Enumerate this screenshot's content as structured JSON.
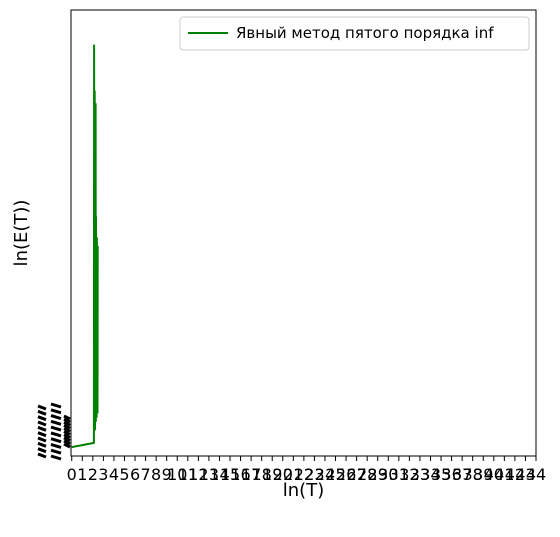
{
  "chart_data": {
    "type": "line",
    "xlabel": "ln(T)",
    "ylabel": "ln(E(T))",
    "xlim": [
      -0.07,
      44
    ],
    "ylim": [
      0,
      100
    ],
    "grid": false,
    "legend_position": "top-right",
    "x_ticks": [
      "0",
      "1",
      "2",
      "3",
      "4",
      "5",
      "6",
      "7",
      "8",
      "9",
      "10",
      "11",
      "12",
      "13",
      "14",
      "15",
      "16",
      "17",
      "18",
      "19",
      "20",
      "21",
      "22",
      "23",
      "24",
      "25",
      "26",
      "27",
      "28",
      "29",
      "30",
      "31",
      "32",
      "33",
      "34",
      "35",
      "36",
      "37",
      "38",
      "39",
      "40",
      "41",
      "42",
      "43",
      "44"
    ],
    "series": [
      {
        "name": "Явный метод пятого порядка inf",
        "color": "#008000",
        "x": [
          0.0,
          2.1,
          2.12,
          2.14,
          2.16,
          2.18,
          2.2,
          2.22,
          2.24,
          2.26,
          2.28,
          2.3,
          2.32,
          2.34,
          2.36,
          2.38,
          2.4,
          2.42,
          2.44,
          2.46
        ],
        "y": [
          0.0,
          1.0,
          96.0,
          45.0,
          8.0,
          85.0,
          4.0,
          60.0,
          10.0,
          82.0,
          6.0,
          55.0,
          9.0,
          40.0,
          7.0,
          50.0,
          8.0,
          30.0,
          8.0,
          48.0
        ]
      }
    ]
  }
}
